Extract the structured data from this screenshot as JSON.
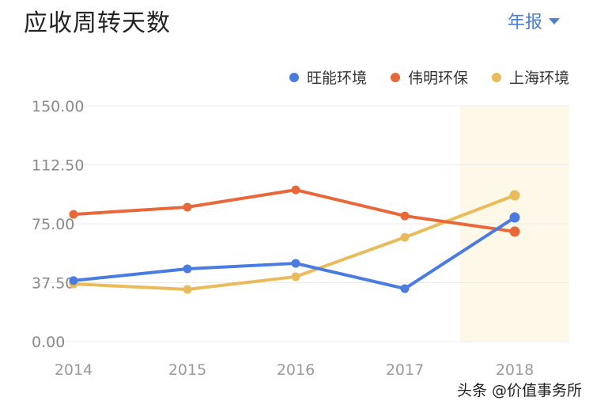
{
  "header": {
    "title": "应收周转天数",
    "period_selector": "年报"
  },
  "watermark": "头条 @价值事务所",
  "chart_data": {
    "type": "line",
    "title": "应收周转天数",
    "categories": [
      "2014",
      "2015",
      "2016",
      "2017",
      "2018"
    ],
    "series": [
      {
        "name": "旺能环境",
        "color": "#4a7be0",
        "values": [
          38.8,
          46.3,
          49.8,
          33.7,
          79.0
        ]
      },
      {
        "name": "伟明环保",
        "color": "#e8683a",
        "values": [
          81.0,
          85.6,
          96.6,
          80.0,
          70.0
        ]
      },
      {
        "name": "上海环境",
        "color": "#e9bb5a",
        "values": [
          36.7,
          33.2,
          41.3,
          66.4,
          93.1
        ]
      }
    ],
    "yticks": [
      "0.00",
      "37.50",
      "75.00",
      "112.50",
      "150.00"
    ],
    "ylim": [
      0,
      150
    ],
    "xlabel": "",
    "ylabel": "",
    "grid": true,
    "legend_position": "top-right",
    "highlight_category": "2018",
    "highlight_color": "#fdf8e8"
  }
}
